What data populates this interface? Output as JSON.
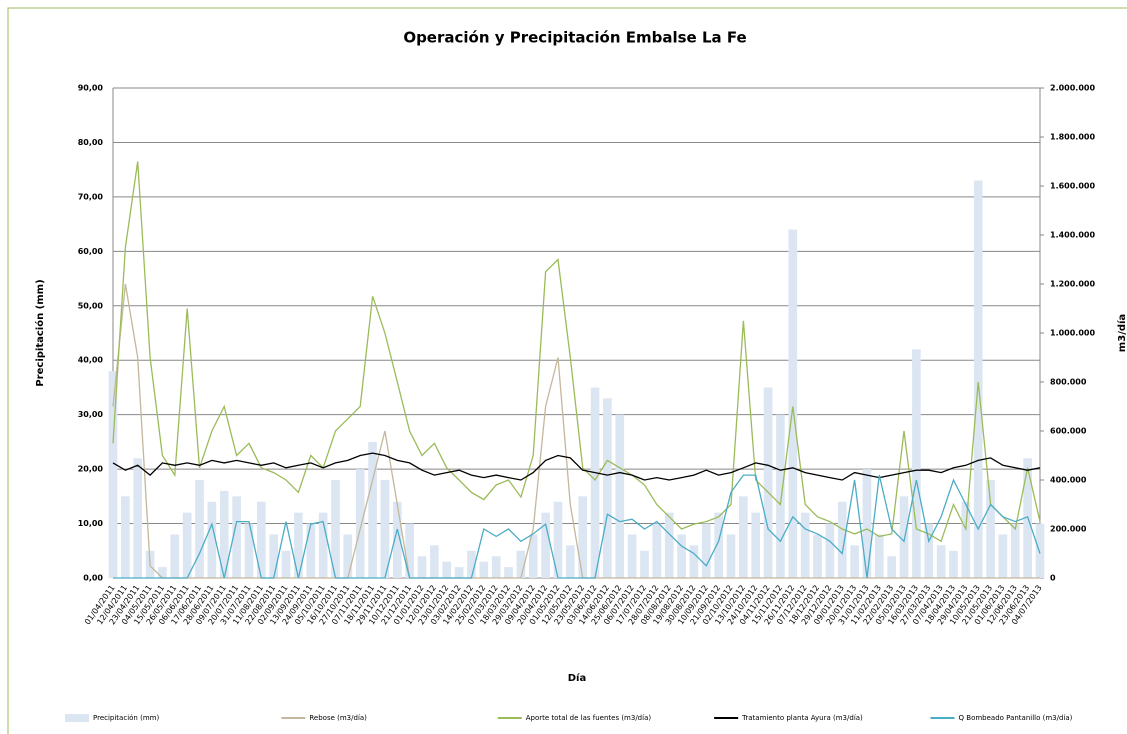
{
  "chart_data": {
    "type": "combo",
    "title": "Operación y Precipitación  Embalse La Fe",
    "x_label": "Día",
    "y_label": "Precipitación (mm)",
    "y2_label": "m3/día",
    "grid": true,
    "legend": "bottom",
    "categories": [
      "01/04/2011",
      "12/04/2011",
      "23/04/2011",
      "04/05/2011",
      "15/05/2011",
      "26/05/2011",
      "06/06/2011",
      "17/06/2011",
      "28/06/2011",
      "09/07/2011",
      "20/07/2011",
      "31/07/2011",
      "11/08/2011",
      "22/08/2011",
      "02/09/2011",
      "13/09/2011",
      "24/09/2011",
      "05/10/2011",
      "16/10/2011",
      "27/10/2011",
      "07/11/2011",
      "18/11/2011",
      "29/11/2011",
      "10/12/2011",
      "21/12/2011",
      "01/01/2012",
      "12/01/2012",
      "23/01/2012",
      "03/02/2012",
      "14/02/2012",
      "25/02/2012",
      "07/03/2012",
      "18/03/2012",
      "29/03/2012",
      "09/04/2012",
      "20/04/2012",
      "01/05/2012",
      "12/05/2012",
      "23/05/2012",
      "03/06/2012",
      "14/06/2012",
      "25/06/2012",
      "06/07/2012",
      "17/07/2012",
      "28/07/2012",
      "08/08/2012",
      "19/08/2012",
      "30/08/2012",
      "10/09/2012",
      "21/09/2012",
      "02/10/2012",
      "13/10/2012",
      "24/10/2012",
      "04/11/2012",
      "15/11/2012",
      "26/11/2012",
      "07/12/2012",
      "18/12/2012",
      "29/12/2012",
      "09/01/2013",
      "20/01/2013",
      "31/01/2013",
      "11/02/2013",
      "22/02/2013",
      "05/03/2013",
      "16/03/2013",
      "27/03/2013",
      "07/04/2013",
      "18/04/2013",
      "29/04/2013",
      "10/05/2013",
      "21/05/2013",
      "01/06/2013",
      "12/06/2013",
      "23/06/2013",
      "04/07/2013"
    ],
    "ylim": [
      0,
      90
    ],
    "yticks": [
      {
        "value": 0,
        "label": "0,00"
      },
      {
        "value": 10,
        "label": "10,00"
      },
      {
        "value": 20,
        "label": "20,00"
      },
      {
        "value": 30,
        "label": "30,00"
      },
      {
        "value": 40,
        "label": "40,00"
      },
      {
        "value": 50,
        "label": "50,00"
      },
      {
        "value": 60,
        "label": "60,00"
      },
      {
        "value": 70,
        "label": "70,00"
      },
      {
        "value": 80,
        "label": "80,00"
      },
      {
        "value": 90,
        "label": "90,00"
      }
    ],
    "y2lim": [
      0,
      2000000
    ],
    "y2ticks": [
      0,
      {
        "value": 200000,
        "label": "200.000"
      },
      {
        "value": 400000,
        "label": "400.000"
      },
      {
        "value": 600000,
        "label": "600.000"
      },
      {
        "value": 800000,
        "label": "800.000"
      },
      {
        "value": 1000000,
        "label": "1.000.000"
      },
      {
        "value": 1200000,
        "label": "1.200.000"
      },
      {
        "value": 1400000,
        "label": "1.400.000"
      },
      {
        "value": 1600000,
        "label": "1.600.000"
      },
      {
        "value": 1800000,
        "label": "1.800.000"
      },
      {
        "value": 2000000,
        "label": "2.000.000"
      }
    ],
    "series": [
      {
        "name": "Precipitación (mm)",
        "type": "bar",
        "axis": "y",
        "color": "#dce6f2",
        "values": [
          38,
          15,
          22,
          5,
          2,
          8,
          12,
          18,
          14,
          16,
          15,
          10,
          14,
          8,
          5,
          12,
          10,
          12,
          18,
          8,
          20,
          25,
          18,
          14,
          10,
          4,
          6,
          3,
          2,
          5,
          3,
          4,
          2,
          5,
          8,
          12,
          14,
          6,
          15,
          35,
          33,
          30,
          8,
          5,
          10,
          12,
          8,
          6,
          10,
          12,
          8,
          15,
          12,
          35,
          30,
          64,
          12,
          8,
          10,
          14,
          6,
          20,
          8,
          4,
          15,
          42,
          10,
          6,
          5,
          14,
          73,
          18,
          8,
          10,
          22,
          10
        ]
      },
      {
        "name": "Rebose (m3/día)",
        "type": "line",
        "axis": "y2",
        "color": "#c4b79b",
        "values": [
          700000,
          1200000,
          900000,
          50000,
          0,
          0,
          0,
          0,
          0,
          0,
          0,
          0,
          0,
          0,
          0,
          0,
          0,
          0,
          0,
          0,
          200000,
          400000,
          600000,
          300000,
          0,
          0,
          0,
          0,
          0,
          0,
          0,
          0,
          0,
          0,
          200000,
          700000,
          900000,
          300000,
          0,
          0,
          0,
          0,
          0,
          0,
          0,
          0,
          0,
          0,
          0,
          0,
          0,
          0,
          0,
          0,
          0,
          0,
          0,
          0,
          0,
          0,
          0,
          0,
          0,
          0,
          0,
          0,
          0,
          0,
          0,
          0,
          0,
          0,
          0,
          0,
          0,
          0
        ]
      },
      {
        "name": "Aporte total de las fuentes   (m3/día)",
        "type": "line",
        "axis": "y2",
        "color": "#9bbb59",
        "values": [
          550000,
          1350000,
          1700000,
          900000,
          500000,
          420000,
          1100000,
          450000,
          600000,
          700000,
          500000,
          550000,
          450000,
          430000,
          400000,
          350000,
          500000,
          450000,
          600000,
          650000,
          700000,
          1150000,
          1000000,
          800000,
          600000,
          500000,
          550000,
          450000,
          400000,
          350000,
          320000,
          380000,
          400000,
          330000,
          500000,
          1250000,
          1300000,
          900000,
          450000,
          400000,
          480000,
          450000,
          420000,
          380000,
          300000,
          250000,
          200000,
          220000,
          230000,
          250000,
          300000,
          1050000,
          400000,
          350000,
          300000,
          700000,
          300000,
          250000,
          230000,
          200000,
          180000,
          200000,
          170000,
          180000,
          600000,
          200000,
          180000,
          150000,
          300000,
          200000,
          800000,
          300000,
          250000,
          200000,
          450000,
          230000
        ]
      },
      {
        "name": "Tratamiento  planta Ayura (m3/día)",
        "type": "line",
        "axis": "y2",
        "color": "#000000",
        "values": [
          470000,
          440000,
          460000,
          420000,
          470000,
          460000,
          470000,
          460000,
          480000,
          470000,
          480000,
          470000,
          460000,
          470000,
          450000,
          460000,
          470000,
          450000,
          470000,
          480000,
          500000,
          510000,
          500000,
          480000,
          470000,
          440000,
          420000,
          430000,
          440000,
          420000,
          410000,
          420000,
          410000,
          400000,
          430000,
          480000,
          500000,
          490000,
          440000,
          430000,
          420000,
          430000,
          420000,
          400000,
          410000,
          400000,
          410000,
          420000,
          440000,
          420000,
          430000,
          450000,
          470000,
          460000,
          440000,
          450000,
          430000,
          420000,
          410000,
          400000,
          430000,
          420000,
          410000,
          420000,
          430000,
          440000,
          440000,
          430000,
          450000,
          460000,
          480000,
          490000,
          460000,
          450000,
          440000,
          450000
        ]
      },
      {
        "name": "Q Bombeado Pantanillo (m3/día)",
        "type": "line",
        "axis": "y2",
        "color": "#4bacc6",
        "values": [
          0,
          0,
          0,
          0,
          0,
          0,
          0,
          100000,
          220000,
          0,
          230000,
          230000,
          0,
          0,
          230000,
          0,
          220000,
          230000,
          0,
          0,
          0,
          0,
          0,
          200000,
          0,
          0,
          0,
          0,
          0,
          0,
          200000,
          170000,
          200000,
          150000,
          180000,
          220000,
          0,
          0,
          0,
          0,
          260000,
          230000,
          240000,
          200000,
          230000,
          180000,
          130000,
          100000,
          50000,
          150000,
          350000,
          420000,
          420000,
          200000,
          150000,
          250000,
          200000,
          180000,
          150000,
          100000,
          400000,
          0,
          420000,
          200000,
          150000,
          400000,
          150000,
          250000,
          400000,
          300000,
          200000,
          300000,
          250000,
          230000,
          250000,
          100000
        ]
      }
    ]
  }
}
